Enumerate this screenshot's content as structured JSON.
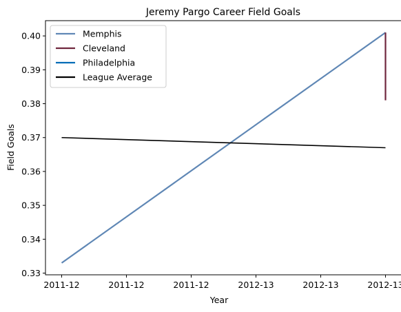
{
  "chart_data": {
    "type": "line",
    "title": "Jeremy Pargo Career Field Goals",
    "xlabel": "Year",
    "ylabel": "Field Goals",
    "x_tick_labels": [
      "2011-12",
      "2011-12",
      "2011-12",
      "2012-13",
      "2012-13",
      "2012-13"
    ],
    "y_ticks": [
      0.33,
      0.34,
      0.35,
      0.36,
      0.37,
      0.38,
      0.39,
      0.4
    ],
    "y_tick_labels": [
      "0.33",
      "0.34",
      "0.35",
      "0.36",
      "0.37",
      "0.38",
      "0.39",
      "0.40"
    ],
    "xlim": [
      -0.05,
      1.05
    ],
    "ylim": [
      0.3295,
      0.4045
    ],
    "grid": false,
    "legend_position": "top-left",
    "series": [
      {
        "name": "Memphis",
        "color": "#5F87B5",
        "x": [
          0,
          1
        ],
        "y": [
          0.333,
          0.401
        ]
      },
      {
        "name": "Cleveland",
        "color": "#6F263D",
        "x": [
          1,
          1
        ],
        "y": [
          0.401,
          0.381
        ]
      },
      {
        "name": "Philadelphia",
        "color": "#006BB6",
        "x": [],
        "y": []
      },
      {
        "name": "League Average",
        "color": "#000000",
        "x": [
          0,
          1
        ],
        "y": [
          0.37,
          0.367
        ]
      }
    ]
  }
}
